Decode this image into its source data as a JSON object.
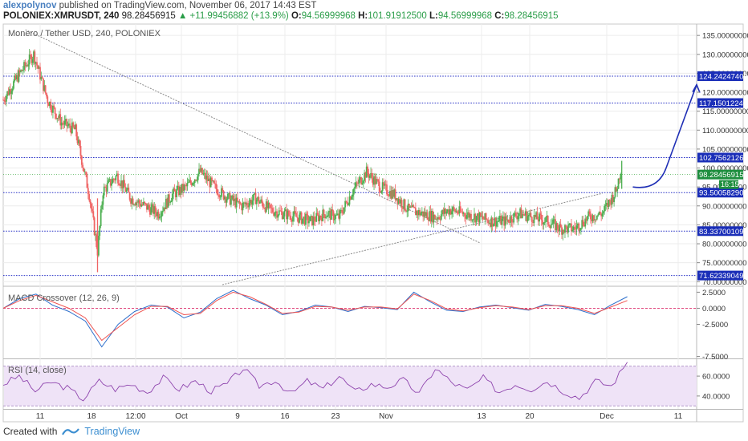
{
  "header": {
    "user": "alexpolynov",
    "published_text": " published on TradingView.com, November 06, 2017 14:43 EST",
    "symbol": "POLONIEX:XMRUSDT, 240",
    "price": "98.28456915",
    "change": "▲ +11.99456882 (+13.9%)",
    "o_label": "O:",
    "o": "94.56999968",
    "h_label": "H:",
    "h": "101.91912500",
    "l_label": "L:",
    "l": "94.56999968",
    "c_label": "C:",
    "c": "98.28456915"
  },
  "footer": {
    "created_with": "Created with",
    "brand": "TradingView",
    "icon": "tradingview-logo-icon"
  },
  "colors": {
    "up": "#4caf50",
    "down": "#ef6464",
    "level": "#2b35c7",
    "trend": "#8a8a8a",
    "arrow": "#1f2fb5",
    "macd": "#2d6fcc",
    "signal": "#ef5350",
    "rsi": "#8e44ad",
    "rsi_band": "#efe3f7"
  },
  "chart_data": [
    {
      "type": "candlestick",
      "title": "Monero / Tether USD, 240, POLONIEX",
      "x_ticks": [
        "11",
        "18",
        "12:00",
        "Oct",
        "9",
        "16",
        "23",
        "Nov",
        "13",
        "20",
        "Dec",
        "11"
      ],
      "y_ticks": [
        "135.00000000",
        "130.00000000",
        "125.00000000",
        "120.00000000",
        "115.00000000",
        "110.00000000",
        "105.00000000",
        "100.00000000",
        "95.00000000",
        "90.00000000",
        "85.00000000",
        "80.00000000",
        "75.00000000",
        "70.00000000"
      ],
      "ylim": [
        69,
        138
      ],
      "horizontal_levels": [
        124.24247409,
        117.15012246,
        102.75621269,
        93.5005829,
        83.33700109,
        71.62339049
      ],
      "level_labels": [
        "124.24247409",
        "117.15012246",
        "102.75621269",
        "93.50058290",
        "83.33700109",
        "71.62339049"
      ],
      "last_price_label": "98.28456915",
      "countdown_label": "16:15",
      "close_path": [
        {
          "x": 0,
          "y": 118
        },
        {
          "x": 6,
          "y": 125
        },
        {
          "x": 11,
          "y": 130
        },
        {
          "x": 16,
          "y": 118
        },
        {
          "x": 21,
          "y": 112
        },
        {
          "x": 26,
          "y": 110
        },
        {
          "x": 31,
          "y": 93
        },
        {
          "x": 34,
          "y": 78
        },
        {
          "x": 36,
          "y": 94
        },
        {
          "x": 41,
          "y": 98
        },
        {
          "x": 46,
          "y": 92
        },
        {
          "x": 51,
          "y": 90
        },
        {
          "x": 56,
          "y": 88
        },
        {
          "x": 61,
          "y": 93
        },
        {
          "x": 66,
          "y": 95
        },
        {
          "x": 71,
          "y": 99
        },
        {
          "x": 76,
          "y": 95
        },
        {
          "x": 81,
          "y": 92
        },
        {
          "x": 86,
          "y": 90
        },
        {
          "x": 91,
          "y": 92
        },
        {
          "x": 96,
          "y": 89
        },
        {
          "x": 101,
          "y": 88
        },
        {
          "x": 106,
          "y": 87
        },
        {
          "x": 111,
          "y": 86
        },
        {
          "x": 116,
          "y": 88
        },
        {
          "x": 121,
          "y": 87
        },
        {
          "x": 126,
          "y": 94
        },
        {
          "x": 131,
          "y": 99
        },
        {
          "x": 136,
          "y": 95
        },
        {
          "x": 141,
          "y": 93
        },
        {
          "x": 146,
          "y": 89
        },
        {
          "x": 151,
          "y": 88
        },
        {
          "x": 156,
          "y": 87
        },
        {
          "x": 161,
          "y": 89
        },
        {
          "x": 166,
          "y": 88
        },
        {
          "x": 171,
          "y": 87
        },
        {
          "x": 176,
          "y": 86
        },
        {
          "x": 181,
          "y": 86
        },
        {
          "x": 186,
          "y": 88
        },
        {
          "x": 191,
          "y": 87
        },
        {
          "x": 196,
          "y": 86
        },
        {
          "x": 201,
          "y": 84
        },
        {
          "x": 206,
          "y": 84
        },
        {
          "x": 211,
          "y": 87
        },
        {
          "x": 216,
          "y": 88
        },
        {
          "x": 221,
          "y": 94
        },
        {
          "x": 223,
          "y": 101
        }
      ],
      "projection_arrow": [
        {
          "x": 227,
          "y": 95
        },
        {
          "x": 236,
          "y": 94
        },
        {
          "x": 250,
          "y": 122
        }
      ]
    },
    {
      "type": "line",
      "title": "MACD Crossover (12, 26, 9)",
      "y_ticks": [
        "2.5000",
        "0.0000",
        "-2.5000",
        "-7.5000"
      ],
      "ylim": [
        -7.8,
        3.3
      ],
      "series": [
        {
          "values": [
            0,
            1.5,
            2.2,
            0.5,
            -0.5,
            -2,
            -6,
            -2.5,
            -0.5,
            0.5,
            0.2,
            -1.5,
            -0.6,
            1.5,
            2.8,
            1.5,
            0.5,
            -1,
            -0.5,
            0.5,
            0.2,
            -0.5,
            0.3,
            0.1,
            -0.2,
            2.5,
            1,
            -0.3,
            -0.5,
            0.2,
            0.5,
            0.1,
            -0.3,
            0.6,
            0.3,
            -0.2,
            -1,
            0.5,
            1.8
          ]
        },
        {
          "values": [
            0,
            1.2,
            2,
            1,
            0,
            -1.5,
            -5,
            -3,
            -1,
            0.3,
            0.3,
            -1,
            -0.8,
            1.2,
            2.5,
            1.8,
            0.6,
            -0.8,
            -0.6,
            0.3,
            0.2,
            -0.3,
            0.2,
            0.2,
            -0.1,
            2.2,
            1.2,
            -0.1,
            -0.4,
            0.1,
            0.4,
            0.2,
            -0.2,
            0.4,
            0.4,
            0,
            -0.8,
            0.2,
            1.2
          ]
        }
      ]
    },
    {
      "type": "line",
      "title": "RSI (14, close)",
      "y_ticks": [
        "60.0000",
        "40.0000"
      ],
      "ylim": [
        27,
        77
      ],
      "values": [
        52,
        60,
        45,
        54,
        48,
        37,
        55,
        47,
        52,
        44,
        58,
        47,
        55,
        45,
        52,
        68,
        50,
        56,
        42,
        55,
        47,
        60,
        44,
        52,
        49,
        56,
        42,
        68,
        54,
        46,
        58,
        44,
        52,
        47,
        55,
        45,
        38,
        55,
        50,
        74
      ]
    }
  ]
}
